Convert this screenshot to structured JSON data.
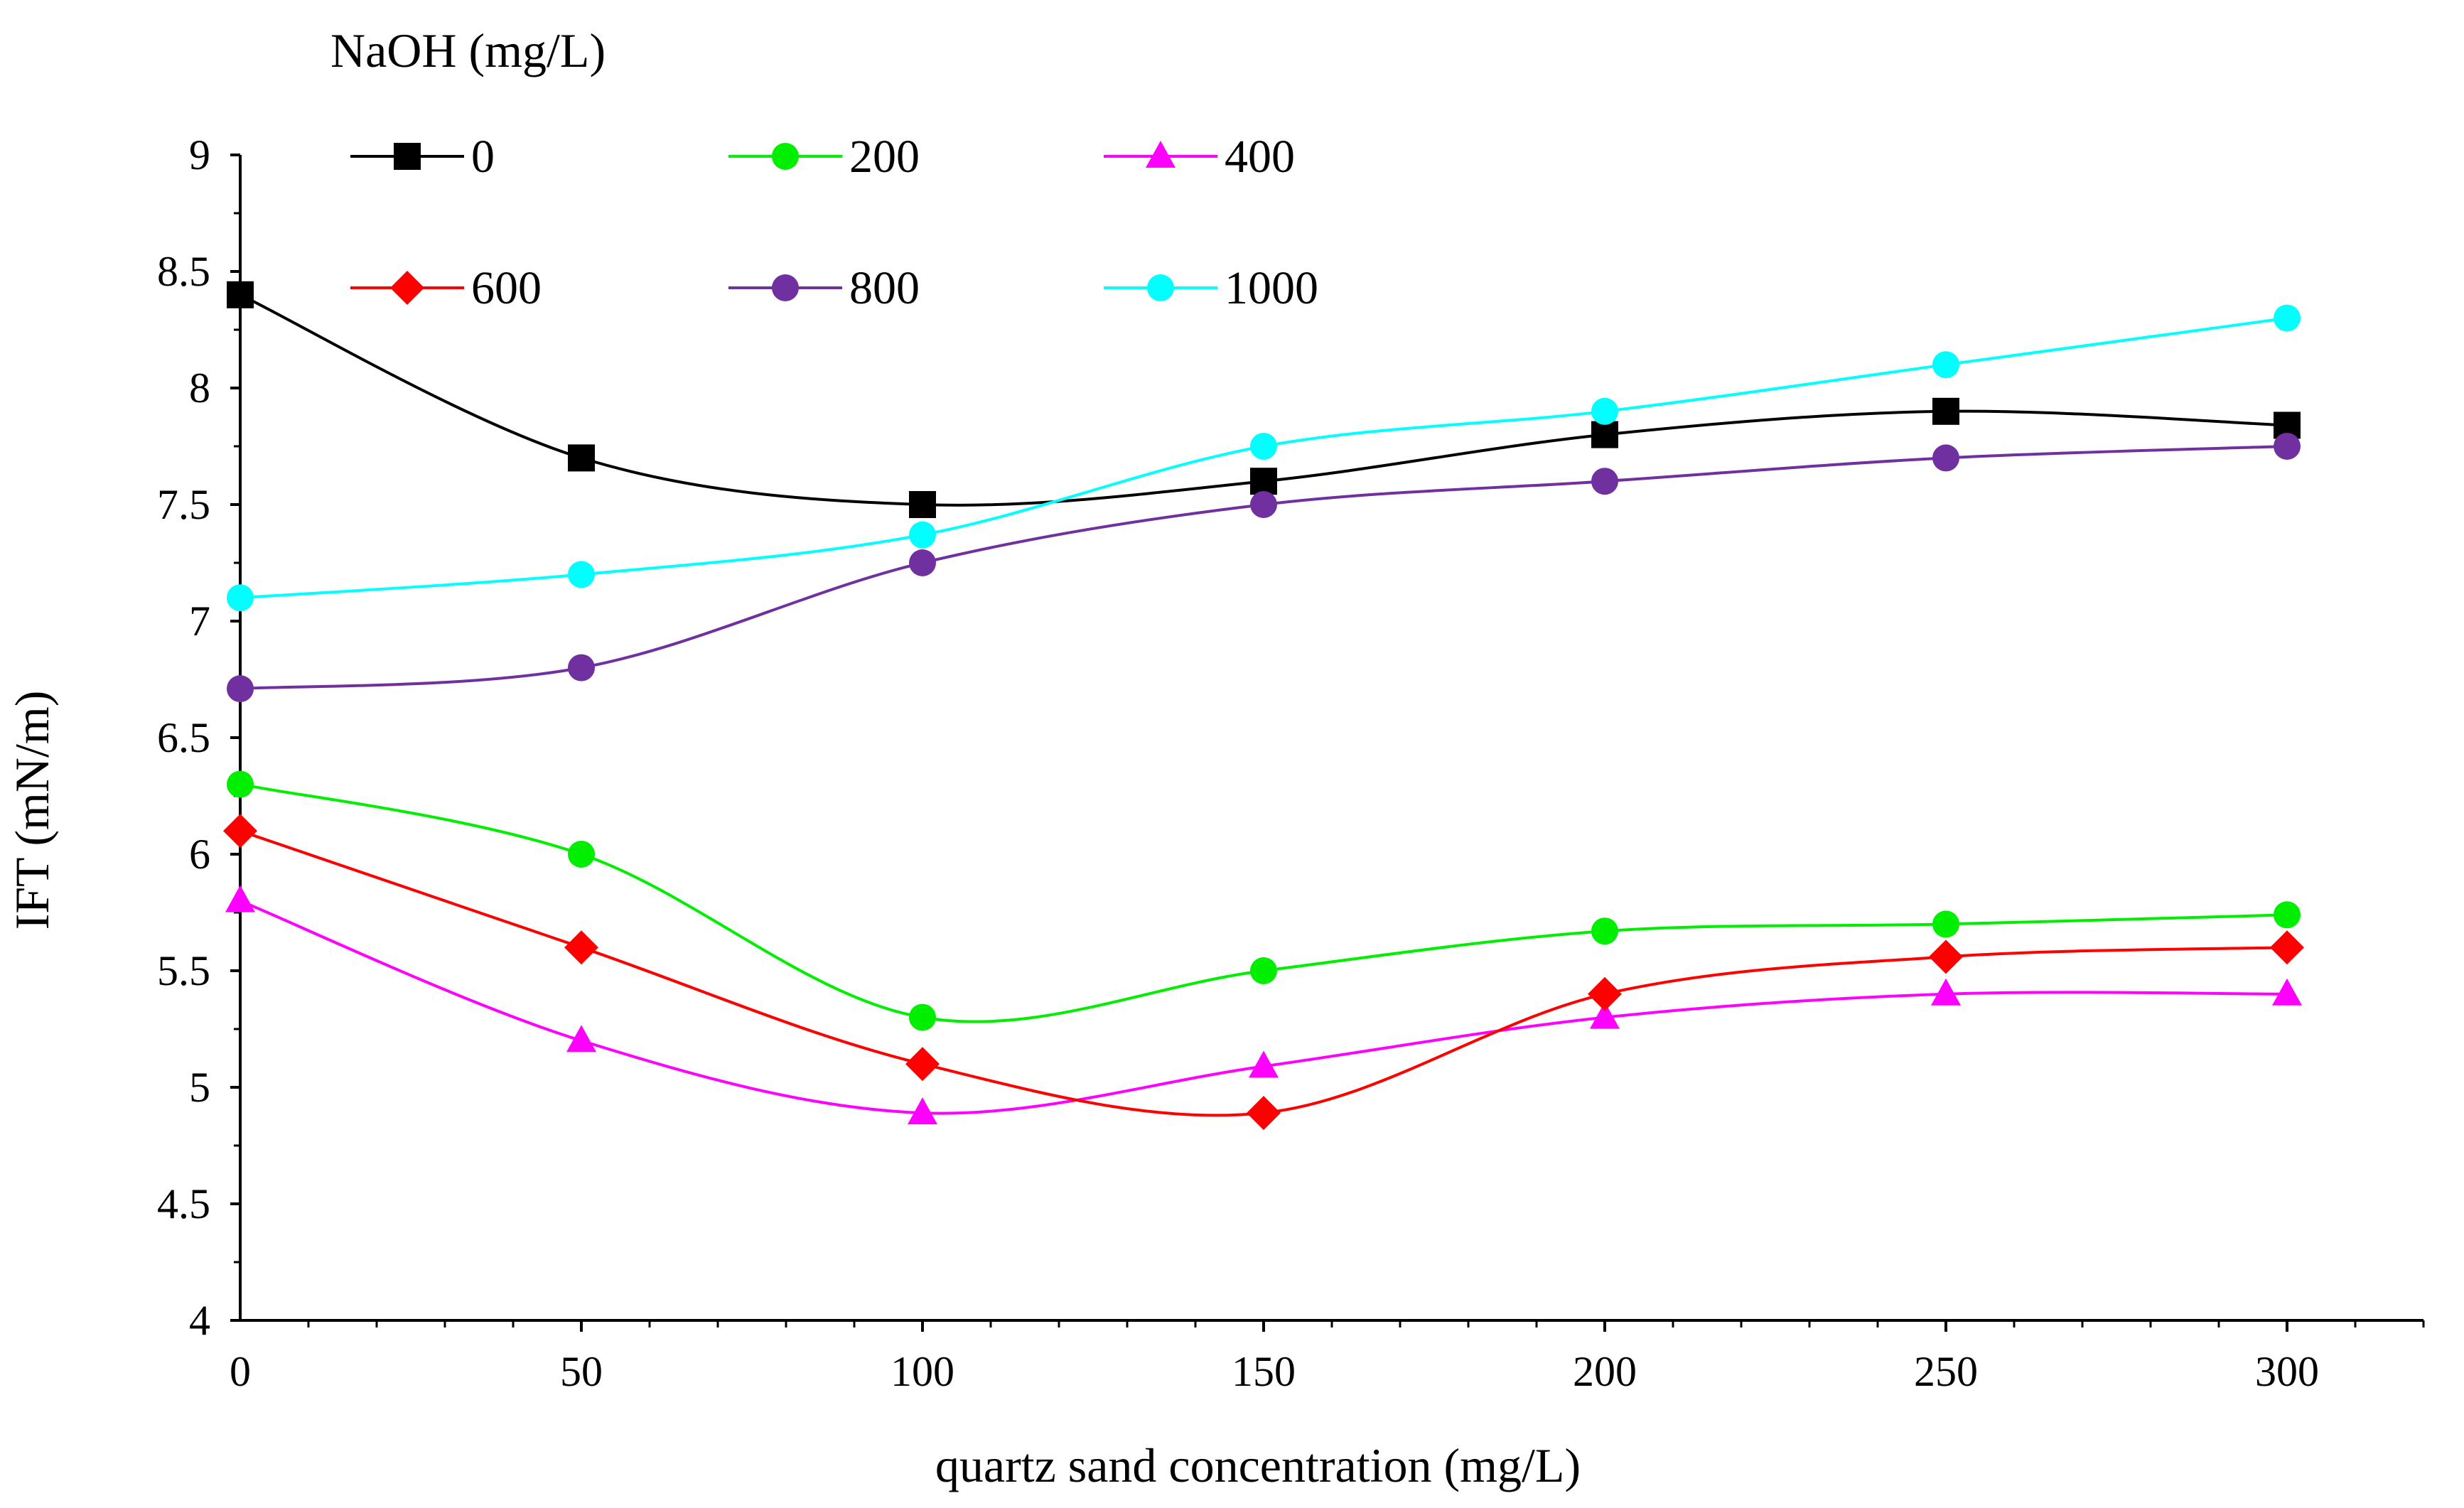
{
  "chart_data": {
    "type": "line",
    "title": "",
    "xlabel": "quartz sand concentration (mg/L)",
    "ylabel": "IFT (mN/m)",
    "xlim": [
      0,
      320
    ],
    "ylim": [
      4,
      9
    ],
    "xticks": [
      "0",
      "50",
      "100",
      "150",
      "200",
      "250",
      "300"
    ],
    "yticks": [
      "4",
      "4.5",
      "5",
      "5.5",
      "6",
      "6.5",
      "7",
      "7.5",
      "8",
      "8.5",
      "9"
    ],
    "legend": {
      "title": "NaOH (mg/L)",
      "position": "top-left",
      "columns": 3
    },
    "grid": false,
    "x": [
      0,
      50,
      100,
      150,
      200,
      250,
      300
    ],
    "series": [
      {
        "name": "0",
        "marker": "square",
        "color": "#000000",
        "values": [
          8.4,
          7.7,
          7.5,
          7.6,
          7.8,
          7.9,
          7.84
        ]
      },
      {
        "name": "200",
        "marker": "circle",
        "color": "#00ee00",
        "values": [
          6.3,
          6.0,
          5.3,
          5.5,
          5.67,
          5.7,
          5.74
        ]
      },
      {
        "name": "400",
        "marker": "triangle",
        "color": "#ff00ff",
        "values": [
          5.8,
          5.2,
          4.89,
          5.09,
          5.3,
          5.4,
          5.4
        ]
      },
      {
        "name": "600",
        "marker": "diamond",
        "color": "#ff0000",
        "values": [
          6.1,
          5.6,
          5.1,
          4.89,
          5.4,
          5.56,
          5.6
        ]
      },
      {
        "name": "800",
        "marker": "circle",
        "color": "#7030a0",
        "values": [
          6.71,
          6.8,
          7.25,
          7.5,
          7.6,
          7.7,
          7.75
        ]
      },
      {
        "name": "1000",
        "marker": "circle",
        "color": "#00ffff",
        "values": [
          7.1,
          7.2,
          7.37,
          7.75,
          7.9,
          8.1,
          8.3
        ]
      }
    ]
  }
}
